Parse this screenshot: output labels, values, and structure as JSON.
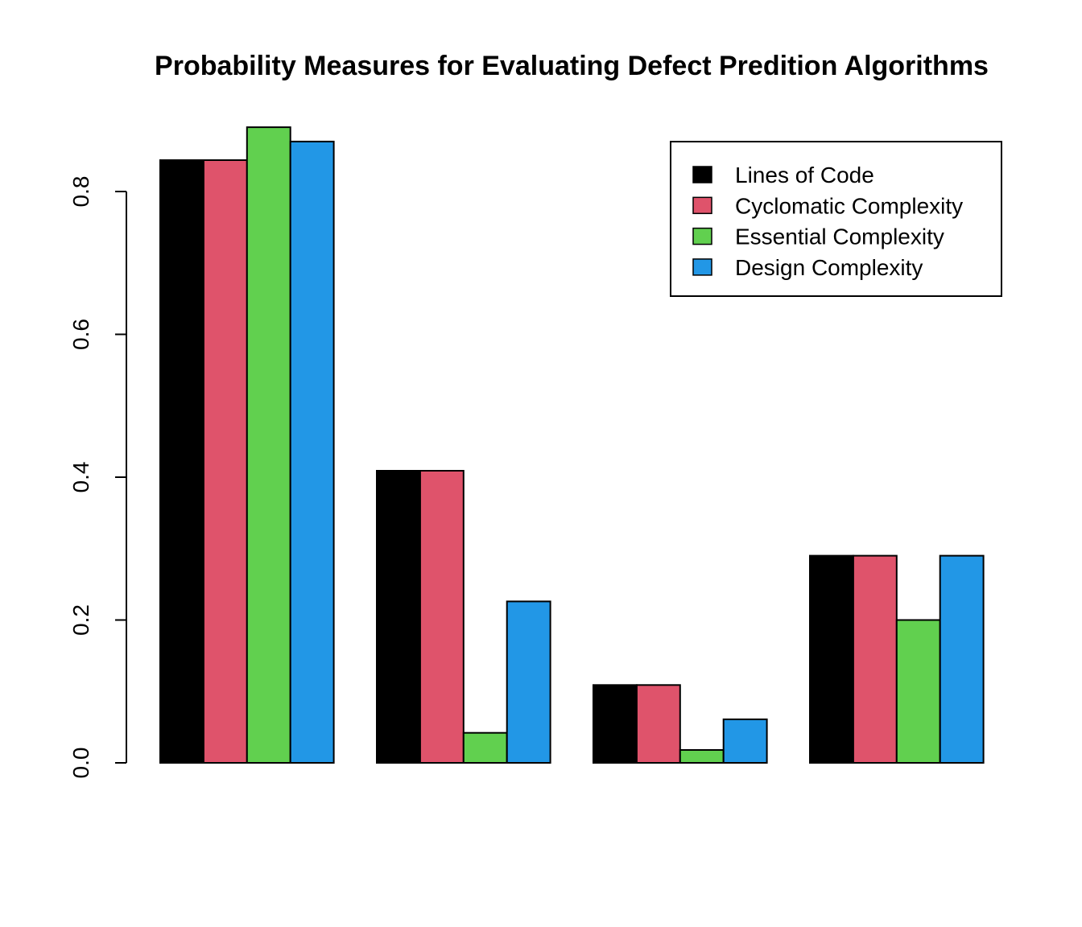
{
  "chart_data": {
    "type": "bar",
    "title": "Probability Measures for Evaluating Defect Predition Algorithms",
    "xlabel": "",
    "ylabel": "",
    "ylim": [
      0,
      0.9
    ],
    "yticks": [
      "0.0",
      "0.2",
      "0.4",
      "0.6",
      "0.8"
    ],
    "categories": [
      "",
      "",
      "",
      ""
    ],
    "series": [
      {
        "name": "Lines of Code",
        "color": "#000000",
        "values": [
          0.844,
          0.409,
          0.109,
          0.29
        ]
      },
      {
        "name": "Cyclomatic Complexity",
        "color": "#DF536B",
        "values": [
          0.844,
          0.409,
          0.109,
          0.29
        ]
      },
      {
        "name": "Essential Complexity",
        "color": "#61D04F",
        "values": [
          0.89,
          0.042,
          0.018,
          0.2
        ]
      },
      {
        "name": "Design Complexity",
        "color": "#2297E6",
        "values": [
          0.87,
          0.226,
          0.061,
          0.29
        ]
      }
    ],
    "legend": "top-right",
    "grid": false
  }
}
